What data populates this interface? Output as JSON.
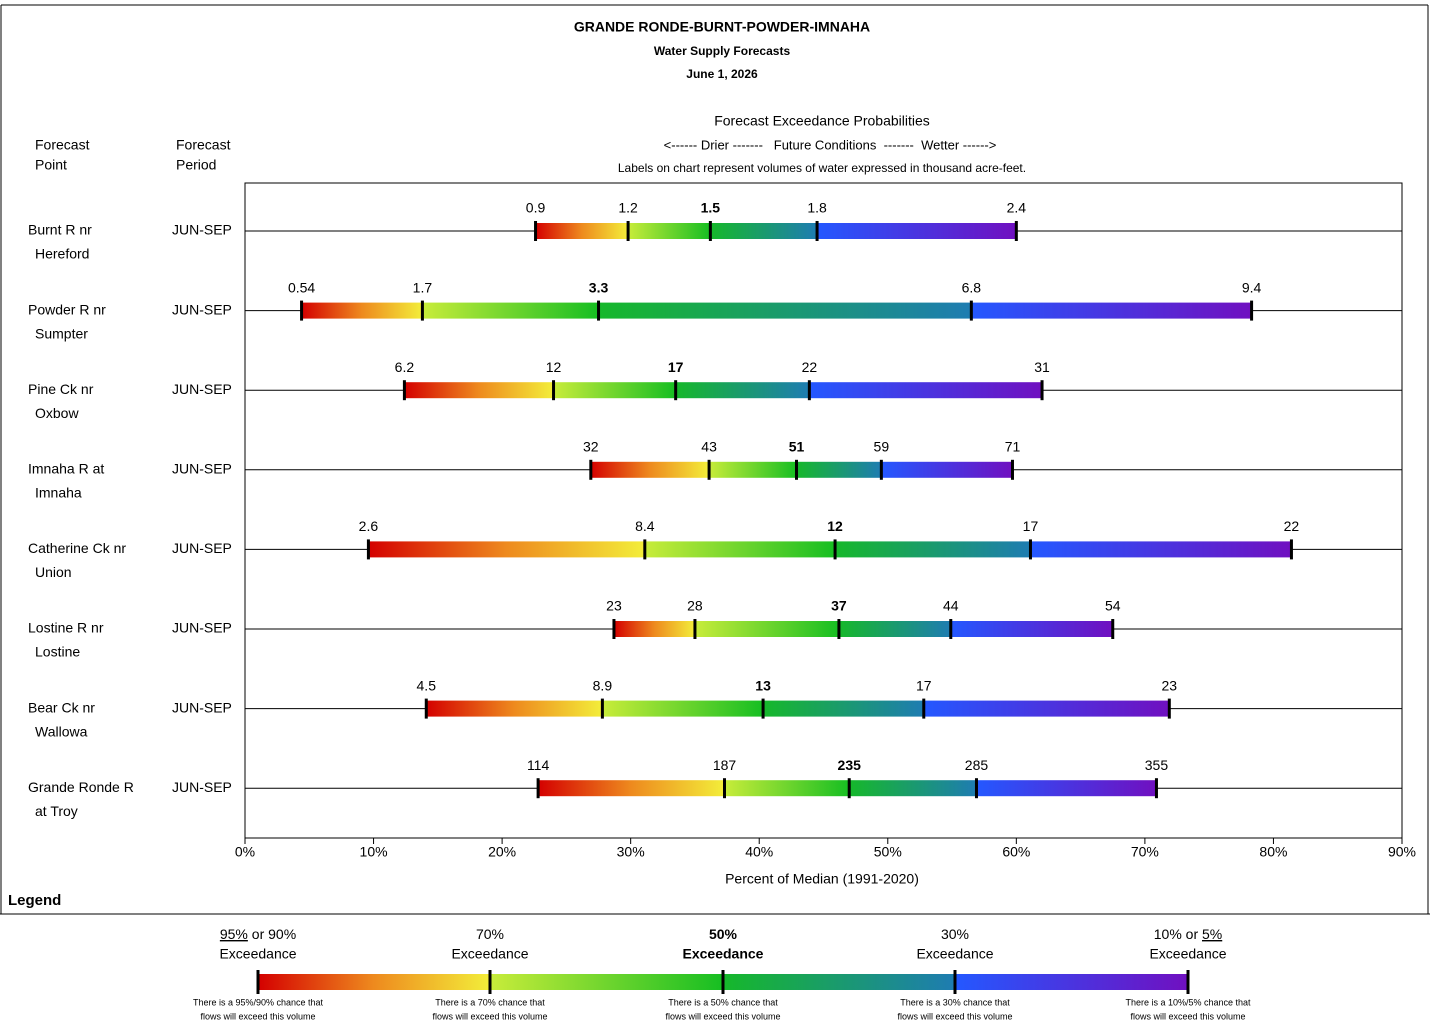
{
  "chart_data": {
    "type": "exceedance",
    "title": "GRANDE RONDE-BURNT-POWDER-IMNAHA",
    "subtitle": "Water Supply Forecasts",
    "date": "June 1, 2026",
    "probabilities_heading": "Forecast Exceedance Probabilities",
    "conditions_line": "<------ Drier -------   Future Conditions  -------  Wetter ------>",
    "units_note": "Labels on chart represent volumes of water expressed in thousand acre-feet.",
    "point_header": [
      "Forecast",
      "Point"
    ],
    "period_header": [
      "Forecast",
      "Period"
    ],
    "xlabel": "Percent of Median (1991-2020)",
    "xlim": [
      0,
      90
    ],
    "xticks": [
      {
        "value": 0,
        "label": "0%"
      },
      {
        "value": 10,
        "label": "10%"
      },
      {
        "value": 20,
        "label": "20%"
      },
      {
        "value": 30,
        "label": "30%"
      },
      {
        "value": 40,
        "label": "40%"
      },
      {
        "value": 50,
        "label": "50%"
      },
      {
        "value": 60,
        "label": "60%"
      },
      {
        "value": 70,
        "label": "70%"
      },
      {
        "value": 80,
        "label": "80%"
      },
      {
        "value": 90,
        "label": "90%"
      }
    ],
    "segment_colors": [
      [
        "#d40000",
        "#ee8a1e",
        "#f3ee3a"
      ],
      [
        "#c8ec3a",
        "#16be22"
      ],
      [
        "#16b82a",
        "#1e7cb2"
      ],
      [
        "#2458ff",
        "#7010c0"
      ]
    ],
    "rows": [
      {
        "name": [
          "Burnt R nr",
          "Hereford"
        ],
        "period": "JUN-SEP",
        "values": [
          22.6,
          29.8,
          36.2,
          44.5,
          60.0
        ],
        "volumes": [
          0.9,
          1.2,
          1.5,
          1.8,
          2.4
        ]
      },
      {
        "name": [
          "Powder R nr",
          "Sumpter"
        ],
        "period": "JUN-SEP",
        "values": [
          4.4,
          13.8,
          27.5,
          56.5,
          78.3
        ],
        "volumes": [
          0.54,
          1.7,
          3.3,
          6.8,
          9.4
        ]
      },
      {
        "name": [
          "Pine Ck nr",
          "Oxbow"
        ],
        "period": "JUN-SEP",
        "values": [
          12.4,
          24.0,
          33.5,
          43.9,
          62.0
        ],
        "volumes": [
          6.2,
          12,
          17,
          22,
          31
        ]
      },
      {
        "name": [
          "Imnaha R at",
          "Imnaha"
        ],
        "period": "JUN-SEP",
        "values": [
          26.9,
          36.1,
          42.9,
          49.5,
          59.7
        ],
        "volumes": [
          32,
          43,
          51,
          59,
          71
        ]
      },
      {
        "name": [
          "Catherine Ck nr",
          "Union"
        ],
        "period": "JUN-SEP",
        "values": [
          9.6,
          31.1,
          45.9,
          61.1,
          81.4
        ],
        "volumes": [
          2.6,
          8.4,
          12,
          17,
          22
        ]
      },
      {
        "name": [
          "Lostine R nr",
          "Lostine"
        ],
        "period": "JUN-SEP",
        "values": [
          28.7,
          35.0,
          46.2,
          54.9,
          67.5
        ],
        "volumes": [
          23,
          28,
          37,
          44,
          54
        ]
      },
      {
        "name": [
          "Bear Ck nr",
          "Wallowa"
        ],
        "period": "JUN-SEP",
        "values": [
          14.1,
          27.8,
          40.3,
          52.8,
          71.9
        ],
        "volumes": [
          4.5,
          8.9,
          13,
          17,
          23
        ]
      },
      {
        "name": [
          "Grande Ronde R",
          "at Troy"
        ],
        "period": "JUN-SEP",
        "values": [
          22.8,
          37.3,
          47.0,
          56.9,
          70.9
        ],
        "volumes": [
          114,
          187,
          235,
          285,
          355
        ]
      }
    ],
    "legend": {
      "title": "Legend",
      "items": [
        {
          "parts": [
            {
              "text": "95%",
              "underline": true
            },
            {
              "text": " or 90%"
            }
          ],
          "word": "Exceedance",
          "note": [
            "There is a 95%/90% chance that",
            "flows will exceed this volume"
          ]
        },
        {
          "parts": [
            {
              "text": "70%"
            }
          ],
          "word": "Exceedance",
          "note": [
            "There is a 70% chance that",
            "flows will exceed this volume"
          ]
        },
        {
          "parts": [
            {
              "text": "50%"
            }
          ],
          "word": "Exceedance",
          "bold": true,
          "note": [
            "There is a 50% chance that",
            "flows will exceed this volume"
          ]
        },
        {
          "parts": [
            {
              "text": "30%"
            }
          ],
          "word": "Exceedance",
          "note": [
            "There is a 30% chance that",
            "flows will exceed this volume"
          ]
        },
        {
          "parts": [
            {
              "text": "10% or "
            },
            {
              "text": "5%",
              "underline": true
            }
          ],
          "word": "Exceedance",
          "note": [
            "There is a 10%/5% chance that",
            "flows will exceed this volume"
          ]
        }
      ]
    }
  }
}
